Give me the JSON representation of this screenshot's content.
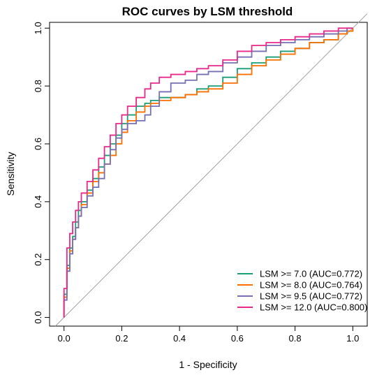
{
  "chart_data": {
    "type": "line",
    "title": "ROC curves by LSM threshold",
    "xlabel": "1 - Specificity",
    "ylabel": "Sensitivity",
    "xlim": [
      -0.05,
      1.05
    ],
    "ylim": [
      -0.03,
      1.02
    ],
    "x_ticks": [
      0.0,
      0.2,
      0.4,
      0.6,
      0.8,
      1.0
    ],
    "y_ticks": [
      0.0,
      0.2,
      0.4,
      0.6,
      0.8,
      1.0
    ],
    "x_tick_labels": [
      "0.0",
      "0.2",
      "0.4",
      "0.6",
      "0.8",
      "1.0"
    ],
    "y_tick_labels": [
      "0.0",
      "0.2",
      "0.4",
      "0.6",
      "0.8",
      "1.0"
    ],
    "reference_line": {
      "x": [
        -0.03,
        1.05
      ],
      "y": [
        -0.03,
        1.05
      ],
      "color": "#a0a0a0"
    },
    "legend_position": "bottom-right",
    "series": [
      {
        "name": "LSM >= 7.0 (AUC=0.772)",
        "color": "#1b9e77",
        "x": [
          0.0,
          0.0,
          0.01,
          0.01,
          0.02,
          0.03,
          0.04,
          0.05,
          0.06,
          0.08,
          0.1,
          0.12,
          0.14,
          0.16,
          0.18,
          0.2,
          0.22,
          0.25,
          0.28,
          0.3,
          0.33,
          0.37,
          0.42,
          0.46,
          0.5,
          0.55,
          0.6,
          0.65,
          0.7,
          0.75,
          0.8,
          0.85,
          0.9,
          0.95,
          0.98,
          1.0
        ],
        "y": [
          0.0,
          0.08,
          0.12,
          0.18,
          0.24,
          0.28,
          0.33,
          0.37,
          0.4,
          0.44,
          0.48,
          0.52,
          0.56,
          0.6,
          0.63,
          0.67,
          0.7,
          0.73,
          0.74,
          0.75,
          0.76,
          0.76,
          0.77,
          0.79,
          0.8,
          0.83,
          0.86,
          0.88,
          0.9,
          0.92,
          0.93,
          0.95,
          0.96,
          0.98,
          0.99,
          1.0
        ]
      },
      {
        "name": "LSM >= 8.0 (AUC=0.764)",
        "color": "#ff6f00",
        "x": [
          0.0,
          0.0,
          0.01,
          0.01,
          0.02,
          0.03,
          0.04,
          0.05,
          0.06,
          0.08,
          0.1,
          0.12,
          0.14,
          0.16,
          0.18,
          0.2,
          0.22,
          0.25,
          0.28,
          0.3,
          0.33,
          0.37,
          0.42,
          0.46,
          0.5,
          0.55,
          0.6,
          0.65,
          0.7,
          0.75,
          0.8,
          0.85,
          0.9,
          0.95,
          0.98,
          1.0
        ],
        "y": [
          0.0,
          0.07,
          0.11,
          0.17,
          0.23,
          0.27,
          0.31,
          0.35,
          0.39,
          0.43,
          0.47,
          0.5,
          0.53,
          0.56,
          0.6,
          0.64,
          0.68,
          0.71,
          0.73,
          0.74,
          0.75,
          0.76,
          0.77,
          0.78,
          0.79,
          0.81,
          0.84,
          0.87,
          0.89,
          0.91,
          0.93,
          0.95,
          0.96,
          0.98,
          0.99,
          1.0
        ]
      },
      {
        "name": "LSM >= 9.5 (AUC=0.772)",
        "color": "#7570b3",
        "x": [
          0.0,
          0.0,
          0.01,
          0.01,
          0.02,
          0.03,
          0.04,
          0.05,
          0.06,
          0.08,
          0.1,
          0.12,
          0.14,
          0.16,
          0.18,
          0.2,
          0.22,
          0.25,
          0.28,
          0.3,
          0.33,
          0.37,
          0.42,
          0.46,
          0.5,
          0.55,
          0.6,
          0.65,
          0.7,
          0.75,
          0.8,
          0.85,
          0.9,
          0.95,
          0.98,
          1.0
        ],
        "y": [
          0.0,
          0.06,
          0.1,
          0.16,
          0.22,
          0.27,
          0.31,
          0.35,
          0.38,
          0.42,
          0.45,
          0.48,
          0.53,
          0.58,
          0.62,
          0.65,
          0.67,
          0.68,
          0.7,
          0.73,
          0.78,
          0.81,
          0.82,
          0.84,
          0.85,
          0.88,
          0.9,
          0.92,
          0.94,
          0.95,
          0.96,
          0.97,
          0.98,
          0.99,
          1.0,
          1.0
        ]
      },
      {
        "name": "LSM >= 12.0 (AUC=0.800)",
        "color": "#e7298a",
        "x": [
          0.0,
          0.0,
          0.01,
          0.01,
          0.02,
          0.03,
          0.04,
          0.05,
          0.06,
          0.08,
          0.1,
          0.12,
          0.14,
          0.16,
          0.18,
          0.2,
          0.22,
          0.25,
          0.28,
          0.3,
          0.33,
          0.37,
          0.42,
          0.46,
          0.5,
          0.55,
          0.6,
          0.65,
          0.7,
          0.75,
          0.8,
          0.85,
          0.9,
          0.95,
          0.98,
          1.0
        ],
        "y": [
          0.0,
          0.1,
          0.19,
          0.24,
          0.29,
          0.33,
          0.37,
          0.4,
          0.43,
          0.47,
          0.51,
          0.55,
          0.59,
          0.63,
          0.67,
          0.7,
          0.73,
          0.76,
          0.79,
          0.81,
          0.83,
          0.84,
          0.85,
          0.86,
          0.87,
          0.89,
          0.92,
          0.94,
          0.95,
          0.96,
          0.97,
          0.98,
          0.99,
          1.0,
          1.0,
          1.0
        ]
      }
    ]
  }
}
